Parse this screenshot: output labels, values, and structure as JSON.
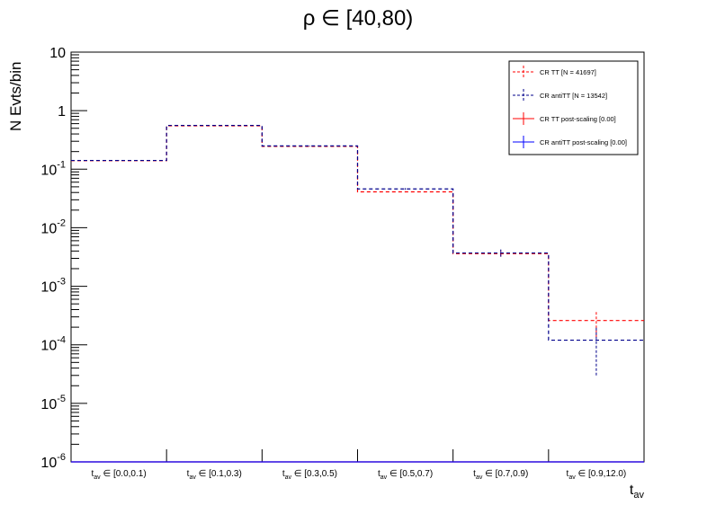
{
  "title": "ρ ∈ [40,80)",
  "chart_data": {
    "type": "line",
    "title": "ρ ∈ [40,80)",
    "xlabel": "t_av",
    "ylabel": "N Evts/bin",
    "yscale": "log",
    "ylim": [
      1e-06,
      10
    ],
    "y_ticks": [
      {
        "base": "10",
        "exp": "-6"
      },
      {
        "base": "10",
        "exp": "-5"
      },
      {
        "base": "10",
        "exp": "-4"
      },
      {
        "base": "10",
        "exp": "-3"
      },
      {
        "base": "10",
        "exp": "-2"
      },
      {
        "base": "10",
        "exp": "-1"
      },
      {
        "base": "1",
        "exp": ""
      },
      {
        "base": "10",
        "exp": ""
      }
    ],
    "categories": [
      {
        "sub": "av",
        "range": "∈ [0.0,0.1)"
      },
      {
        "sub": "av",
        "range": "∈ [0.1,0.3)"
      },
      {
        "sub": "av",
        "range": "∈ [0.3,0.5)"
      },
      {
        "sub": "av",
        "range": "∈ [0.5,0.7)"
      },
      {
        "sub": "av",
        "range": "∈ [0.7,0.9)"
      },
      {
        "sub": "av",
        "range": "∈ [0.9,12.0)"
      }
    ],
    "series": [
      {
        "name": "CR TT [N = 41697]",
        "color": "#ff0000",
        "style": "dashed",
        "values": [
          0.14,
          0.55,
          0.245,
          0.041,
          0.0036,
          0.00026
        ],
        "err_low": [
          0.1392,
          0.549,
          0.244,
          0.0403,
          0.0032,
          0.000135
        ],
        "err_high": [
          0.1408,
          0.551,
          0.246,
          0.0417,
          0.0041,
          0.00037
        ]
      },
      {
        "name": "CR antiTT [N = 13542]",
        "color": "#00008b",
        "style": "dashed",
        "values": [
          0.141,
          0.56,
          0.25,
          0.046,
          0.0037,
          0.00012
        ],
        "err_low": [
          0.1395,
          0.558,
          0.248,
          0.0445,
          0.0032,
          3e-05
        ],
        "err_high": [
          0.1425,
          0.562,
          0.252,
          0.0475,
          0.0043,
          0.00021
        ]
      },
      {
        "name": "CR TT post-scaling [0.00]",
        "color": "#ff0000",
        "style": "solid",
        "values": [
          1e-06,
          1e-06,
          1e-06,
          1e-06,
          1e-06,
          1e-06
        ]
      },
      {
        "name": "CR antiTT post-scaling [0.00]",
        "color": "#0000ff",
        "style": "solid",
        "values": [
          1e-06,
          1e-06,
          1e-06,
          1e-06,
          1e-06,
          1e-06
        ]
      }
    ],
    "legend": "top-right",
    "grid": false
  }
}
